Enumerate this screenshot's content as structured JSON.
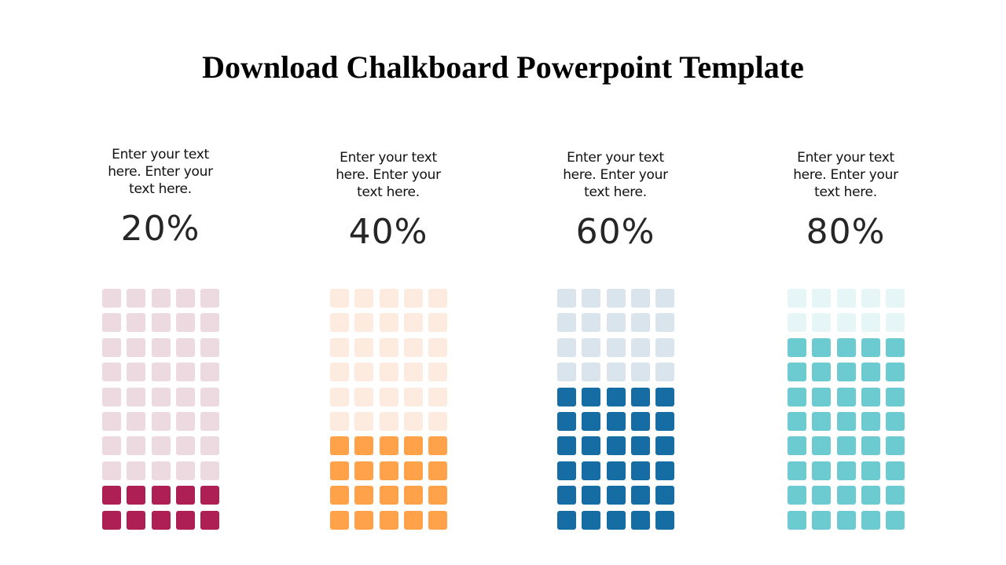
{
  "slide": {
    "title": "Download Chalkboard Powerpoint Template"
  },
  "columns": [
    {
      "text": "Enter your text here. Enter your text here.",
      "percent_label": "20%",
      "percent": 20,
      "fill_color": "#AE1F53",
      "empty_color": "#EDD9E0"
    },
    {
      "text": "Enter your text here. Enter your text here.",
      "percent_label": "40%",
      "percent": 40,
      "fill_color": "#FFA24A",
      "empty_color": "#FDEBDF"
    },
    {
      "text": "Enter your text here. Enter your text here.",
      "percent_label": "60%",
      "percent": 60,
      "fill_color": "#166DA3",
      "empty_color": "#DAE4EC"
    },
    {
      "text": "Enter your text here. Enter your text here.",
      "percent_label": "80%",
      "percent": 80,
      "fill_color": "#6BCBD0",
      "empty_color": "#E6F6F7"
    }
  ]
}
